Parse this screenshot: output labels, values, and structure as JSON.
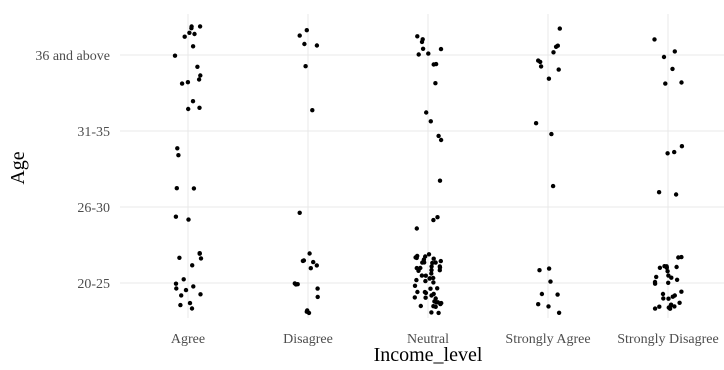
{
  "chart_data": {
    "type": "scatter",
    "subtype": "jitter-strip",
    "title": "",
    "xlabel": "Income_level",
    "ylabel": "Age",
    "x_categories": [
      "Agree",
      "Disagree",
      "Neutral",
      "Strongly Agree",
      "Strongly Disagree"
    ],
    "y_categories": [
      "20-25",
      "26-30",
      "31-35",
      "36 and above"
    ],
    "grid": true,
    "legend": "none",
    "point_color": "#000000",
    "background": "#ffffff",
    "counts": [
      {
        "x": "Agree",
        "y": "20-25",
        "n": 15
      },
      {
        "x": "Agree",
        "y": "26-30",
        "n": 4
      },
      {
        "x": "Agree",
        "y": "31-35",
        "n": 5
      },
      {
        "x": "Agree",
        "y": "36 and above",
        "n": 13
      },
      {
        "x": "Disagree",
        "y": "20-25",
        "n": 14
      },
      {
        "x": "Disagree",
        "y": "26-30",
        "n": 1
      },
      {
        "x": "Disagree",
        "y": "31-35",
        "n": 1
      },
      {
        "x": "Disagree",
        "y": "36 and above",
        "n": 5
      },
      {
        "x": "Neutral",
        "y": "20-25",
        "n": 50
      },
      {
        "x": "Neutral",
        "y": "26-30",
        "n": 4
      },
      {
        "x": "Neutral",
        "y": "31-35",
        "n": 4
      },
      {
        "x": "Neutral",
        "y": "36 and above",
        "n": 10
      },
      {
        "x": "Strongly Agree",
        "y": "20-25",
        "n": 8
      },
      {
        "x": "Strongly Agree",
        "y": "26-30",
        "n": 1
      },
      {
        "x": "Strongly Agree",
        "y": "31-35",
        "n": 2
      },
      {
        "x": "Strongly Agree",
        "y": "36 and above",
        "n": 9
      },
      {
        "x": "Strongly Disagree",
        "y": "20-25",
        "n": 29
      },
      {
        "x": "Strongly Disagree",
        "y": "26-30",
        "n": 2
      },
      {
        "x": "Strongly Disagree",
        "y": "31-35",
        "n": 3
      },
      {
        "x": "Strongly Disagree",
        "y": "36 and above",
        "n": 6
      }
    ]
  }
}
